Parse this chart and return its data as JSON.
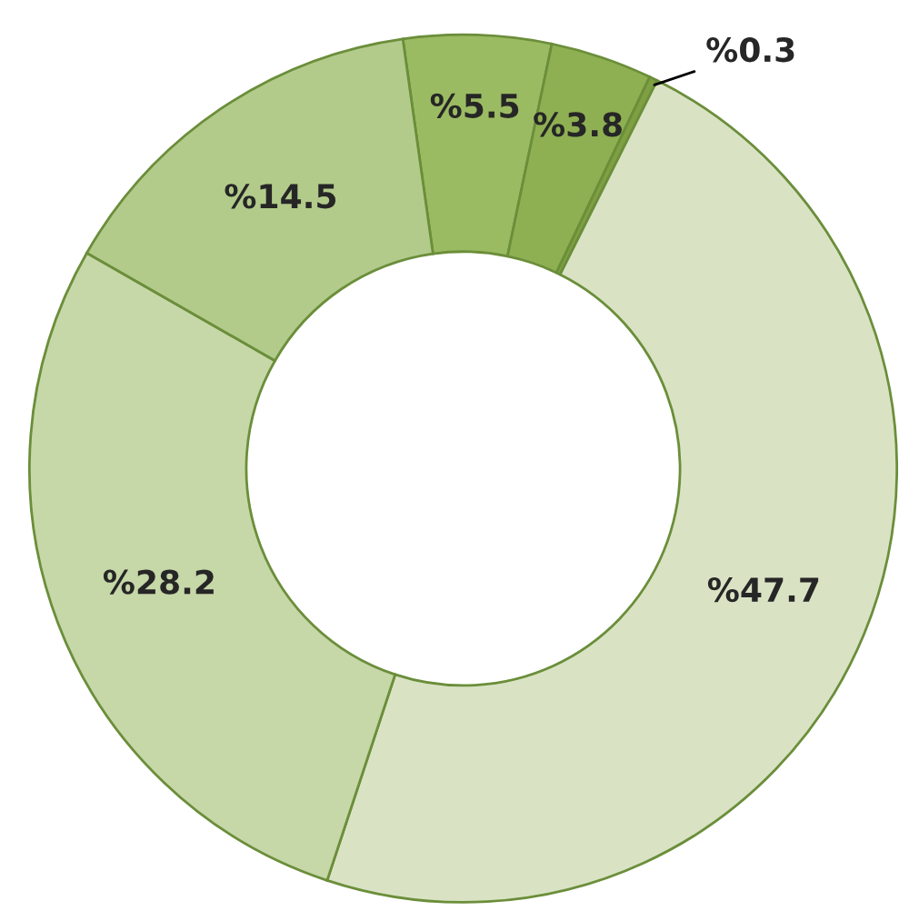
{
  "chart_data": {
    "type": "donut",
    "categories": [
      null,
      null,
      null,
      null,
      null,
      null
    ],
    "values": [
      5.5,
      3.8,
      0.3,
      47.7,
      28.2,
      14.5
    ],
    "colors": [
      "#9bbb62",
      "#8fb052",
      "#7f9f42",
      "#d9e3c4",
      "#c6d7a8",
      "#b2cb8b"
    ],
    "value_labels": [
      "%5.5",
      "%3.8",
      "%0.3",
      "%47.7",
      "%28.2",
      "%14.5"
    ]
  }
}
